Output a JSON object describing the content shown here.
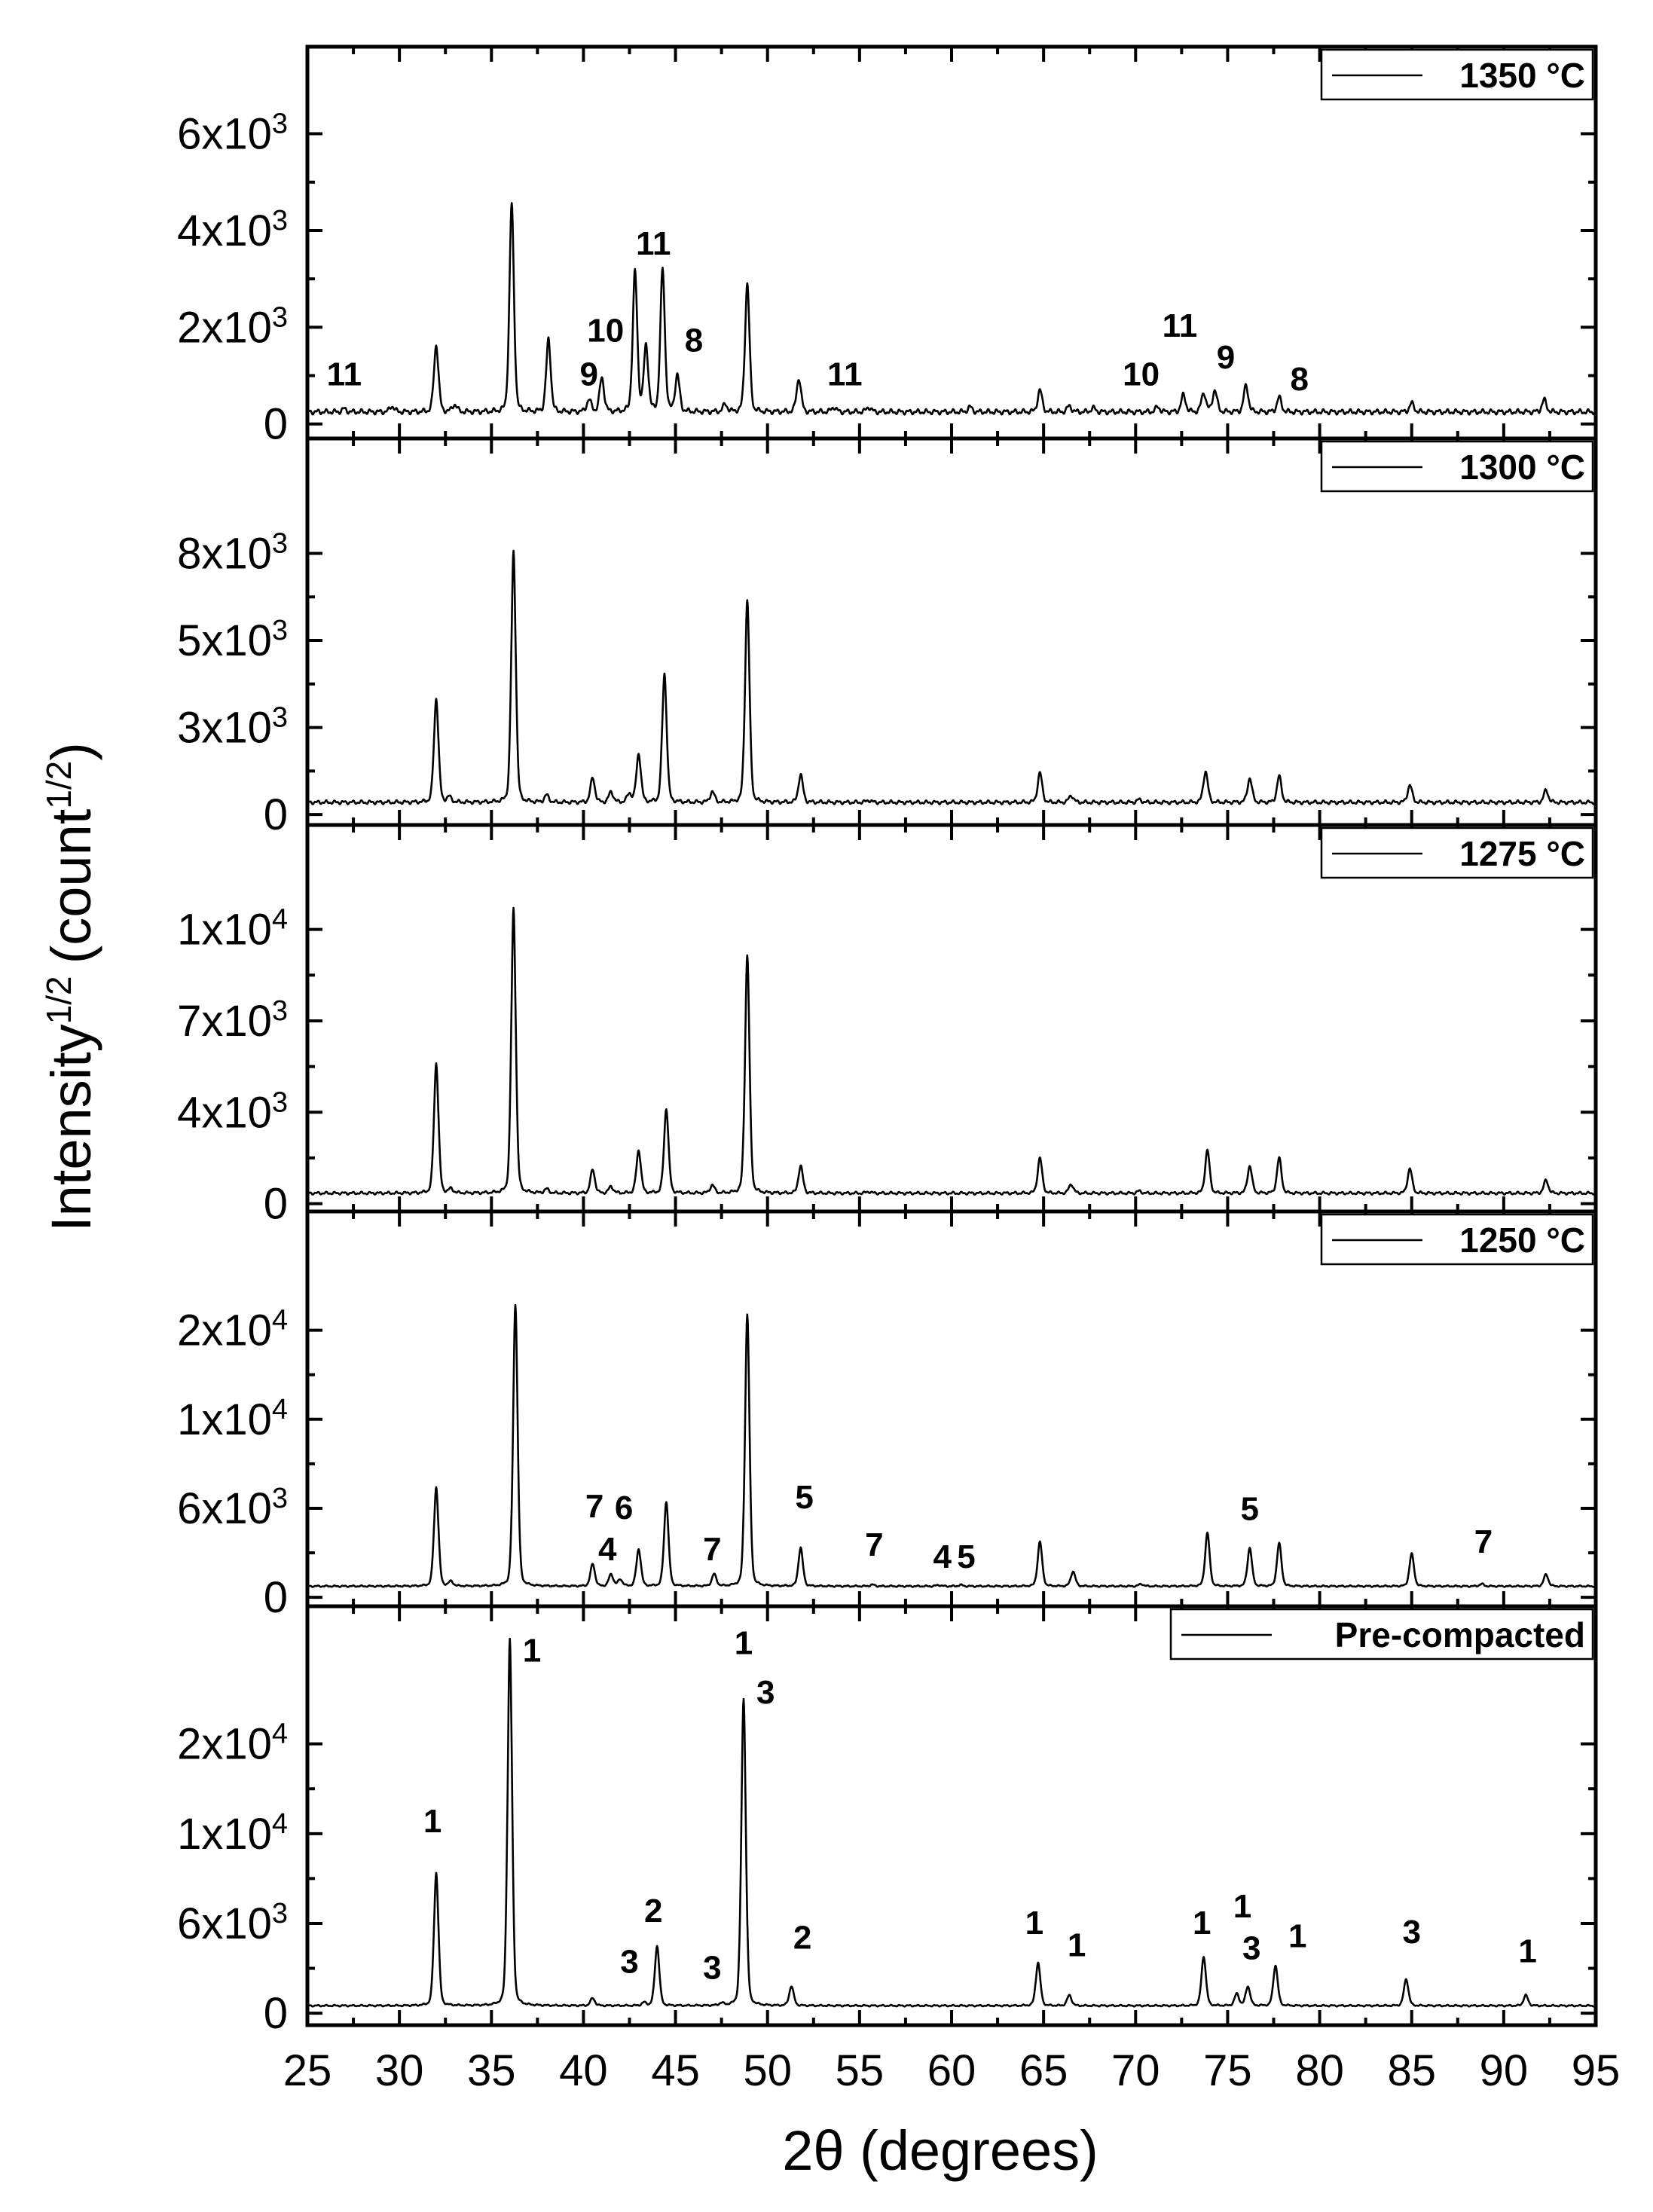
{
  "chart_data": {
    "type": "line",
    "xlabel": "2θ (degrees)",
    "ylabel_main": "Intensity",
    "ylabel_sup": "1/2",
    "ylabel_paren_open": "(count",
    "ylabel_paren_sup": "1/2",
    "ylabel_paren_close": ")",
    "xlim": [
      25,
      95
    ],
    "xticks": [
      25,
      30,
      35,
      40,
      45,
      50,
      55,
      60,
      65,
      70,
      75,
      80,
      85,
      90,
      95
    ],
    "xtick_labels": [
      "25",
      "30",
      "35",
      "40",
      "45",
      "50",
      "55",
      "60",
      "65",
      "70",
      "75",
      "80",
      "85",
      "90",
      "95"
    ],
    "panels": [
      {
        "legend": "1350 °C",
        "ylim": [
          -300,
          7800
        ],
        "yticks": [
          {
            "value": 0,
            "base": "0",
            "exp": ""
          },
          {
            "value": 2000,
            "base": "2x10",
            "exp": "3"
          },
          {
            "value": 4000,
            "base": "4x10",
            "exp": "3"
          },
          {
            "value": 6000,
            "base": "6x10",
            "exp": "3"
          }
        ],
        "baseline": 250,
        "peaks": [
          [
            27.0,
            60
          ],
          [
            29.6,
            120
          ],
          [
            32.0,
            1400
          ],
          [
            33.0,
            150
          ],
          [
            36.1,
            4300
          ],
          [
            38.1,
            1500
          ],
          [
            40.3,
            250
          ],
          [
            41.0,
            700
          ],
          [
            42.8,
            2900
          ],
          [
            43.4,
            1350
          ],
          [
            44.3,
            2950
          ],
          [
            45.1,
            750
          ],
          [
            47.7,
            150
          ],
          [
            48.9,
            2650
          ],
          [
            51.7,
            700
          ],
          [
            53.6,
            100
          ],
          [
            55.5,
            100
          ],
          [
            61.0,
            100
          ],
          [
            64.8,
            450
          ],
          [
            66.4,
            120
          ],
          [
            67.7,
            80
          ],
          [
            71.2,
            100
          ],
          [
            72.6,
            350
          ],
          [
            73.7,
            400
          ],
          [
            74.3,
            450
          ],
          [
            76.0,
            550
          ],
          [
            77.8,
            300
          ],
          [
            85.0,
            180
          ],
          [
            92.2,
            250
          ]
        ],
        "labels": [
          {
            "text": "11",
            "x": 27.0,
            "y": 800
          },
          {
            "text": "10",
            "x": 41.2,
            "y": 1700
          },
          {
            "text": "9",
            "x": 40.3,
            "y": 800
          },
          {
            "text": "11",
            "x": 43.8,
            "y": 3500
          },
          {
            "text": "8",
            "x": 46.0,
            "y": 1500
          },
          {
            "text": "11",
            "x": 54.2,
            "y": 800
          },
          {
            "text": "10",
            "x": 70.3,
            "y": 800
          },
          {
            "text": "11",
            "x": 72.4,
            "y": 1800
          },
          {
            "text": "9",
            "x": 74.9,
            "y": 1150
          },
          {
            "text": "8",
            "x": 78.9,
            "y": 700
          }
        ]
      },
      {
        "legend": "1300 °C",
        "ylim": [
          -300,
          10800
        ],
        "yticks": [
          {
            "value": 0,
            "base": "0",
            "exp": ""
          },
          {
            "value": 2500,
            "base": "3x10",
            "exp": "3"
          },
          {
            "value": 5000,
            "base": "5x10",
            "exp": "3"
          },
          {
            "value": 7500,
            "base": "8x10",
            "exp": "3"
          }
        ],
        "baseline": 350,
        "peaks": [
          [
            32.0,
            3000
          ],
          [
            32.7,
            150
          ],
          [
            36.2,
            7200
          ],
          [
            38.0,
            200
          ],
          [
            40.5,
            700
          ],
          [
            41.5,
            300
          ],
          [
            42.5,
            250
          ],
          [
            43.0,
            1400
          ],
          [
            44.4,
            3700
          ],
          [
            47.0,
            300
          ],
          [
            48.9,
            5800
          ],
          [
            51.8,
            800
          ],
          [
            55.5,
            60
          ],
          [
            64.8,
            850
          ],
          [
            66.5,
            200
          ],
          [
            70.2,
            80
          ],
          [
            73.8,
            900
          ],
          [
            76.2,
            700
          ],
          [
            77.8,
            750
          ],
          [
            84.9,
            500
          ],
          [
            92.3,
            350
          ]
        ],
        "labels": []
      },
      {
        "legend": "1275 °C",
        "ylim": [
          -300,
          14500
        ],
        "yticks": [
          {
            "value": 0,
            "base": "0",
            "exp": ""
          },
          {
            "value": 3500,
            "base": "4x10",
            "exp": "3"
          },
          {
            "value": 7000,
            "base": "7x10",
            "exp": "3"
          },
          {
            "value": 10500,
            "base": "1x10",
            "exp": "4"
          }
        ],
        "baseline": 400,
        "peaks": [
          [
            32.0,
            5000
          ],
          [
            32.8,
            150
          ],
          [
            36.2,
            10900
          ],
          [
            38.0,
            150
          ],
          [
            40.5,
            900
          ],
          [
            41.5,
            250
          ],
          [
            43.0,
            1650
          ],
          [
            44.5,
            3250
          ],
          [
            47.0,
            300
          ],
          [
            48.9,
            9100
          ],
          [
            51.8,
            1050
          ],
          [
            55.5,
            60
          ],
          [
            64.8,
            1350
          ],
          [
            66.5,
            350
          ],
          [
            70.2,
            80
          ],
          [
            73.9,
            1650
          ],
          [
            76.2,
            1050
          ],
          [
            77.8,
            1350
          ],
          [
            84.9,
            950
          ],
          [
            92.3,
            500
          ]
        ],
        "labels": []
      },
      {
        "legend": "1250 °C",
        "ylim": [
          -600,
          26000
        ],
        "yticks": [
          {
            "value": 0,
            "base": "0",
            "exp": ""
          },
          {
            "value": 6000,
            "base": "6x10",
            "exp": "3"
          },
          {
            "value": 12000,
            "base": "1x10",
            "exp": "4"
          },
          {
            "value": 18000,
            "base": "2x10",
            "exp": "4"
          }
        ],
        "baseline": 750,
        "peaks": [
          [
            32.0,
            6700
          ],
          [
            32.8,
            300
          ],
          [
            36.3,
            19000
          ],
          [
            40.5,
            1500
          ],
          [
            41.5,
            800
          ],
          [
            42.0,
            450
          ],
          [
            43.0,
            2500
          ],
          [
            44.5,
            5700
          ],
          [
            47.1,
            800
          ],
          [
            48.9,
            18300
          ],
          [
            51.8,
            2600
          ],
          [
            55.7,
            100
          ],
          [
            59.3,
            80
          ],
          [
            60.5,
            80
          ],
          [
            64.8,
            3000
          ],
          [
            66.6,
            1000
          ],
          [
            70.3,
            150
          ],
          [
            73.9,
            3600
          ],
          [
            76.2,
            2600
          ],
          [
            77.8,
            2900
          ],
          [
            85.0,
            2200
          ],
          [
            88.8,
            150
          ],
          [
            92.3,
            800
          ]
        ],
        "labels": [
          {
            "text": "7",
            "x": 40.6,
            "y": 5400
          },
          {
            "text": "6",
            "x": 42.2,
            "y": 5300
          },
          {
            "text": "4",
            "x": 41.3,
            "y": 2500
          },
          {
            "text": "7",
            "x": 47.0,
            "y": 2500
          },
          {
            "text": "5",
            "x": 52.0,
            "y": 6000
          },
          {
            "text": "7",
            "x": 55.8,
            "y": 2800
          },
          {
            "text": "4",
            "x": 59.5,
            "y": 2000
          },
          {
            "text": "5",
            "x": 60.8,
            "y": 2000
          },
          {
            "text": "5",
            "x": 76.2,
            "y": 5200
          },
          {
            "text": "7",
            "x": 88.9,
            "y": 3000
          }
        ]
      },
      {
        "legend": "Pre-compacted",
        "ylim": [
          -800,
          27200
        ],
        "yticks": [
          {
            "value": 0,
            "base": "0",
            "exp": ""
          },
          {
            "value": 6000,
            "base": "6x10",
            "exp": "3"
          },
          {
            "value": 12000,
            "base": "1x10",
            "exp": "4"
          },
          {
            "value": 18000,
            "base": "2x10",
            "exp": "4"
          }
        ],
        "baseline": 500,
        "peaks": [
          [
            32.0,
            8900
          ],
          [
            36.0,
            24500
          ],
          [
            40.5,
            500
          ],
          [
            43.3,
            200
          ],
          [
            44.0,
            4000
          ],
          [
            47.5,
            150
          ],
          [
            48.7,
            20500
          ],
          [
            51.3,
            1300
          ],
          [
            64.7,
            2900
          ],
          [
            66.4,
            700
          ],
          [
            73.7,
            3300
          ],
          [
            75.5,
            800
          ],
          [
            76.1,
            1300
          ],
          [
            77.6,
            2700
          ],
          [
            84.7,
            1800
          ],
          [
            91.2,
            700
          ]
        ],
        "labels": [
          {
            "text": "1",
            "x": 31.8,
            "y": 12100
          },
          {
            "text": "1",
            "x": 37.2,
            "y": 23500
          },
          {
            "text": "3",
            "x": 42.5,
            "y": 2700
          },
          {
            "text": "2",
            "x": 43.8,
            "y": 6100
          },
          {
            "text": "3",
            "x": 47.0,
            "y": 2300
          },
          {
            "text": "1",
            "x": 48.7,
            "y": 24000
          },
          {
            "text": "3",
            "x": 49.9,
            "y": 20700
          },
          {
            "text": "2",
            "x": 51.9,
            "y": 4300
          },
          {
            "text": "1",
            "x": 64.5,
            "y": 5300
          },
          {
            "text": "1",
            "x": 66.8,
            "y": 3800
          },
          {
            "text": "1",
            "x": 73.6,
            "y": 5300
          },
          {
            "text": "1",
            "x": 75.8,
            "y": 6400
          },
          {
            "text": "3",
            "x": 76.3,
            "y": 3600
          },
          {
            "text": "1",
            "x": 78.8,
            "y": 4400
          },
          {
            "text": "3",
            "x": 85.0,
            "y": 4700
          },
          {
            "text": "1",
            "x": 91.3,
            "y": 3400
          }
        ]
      }
    ]
  }
}
